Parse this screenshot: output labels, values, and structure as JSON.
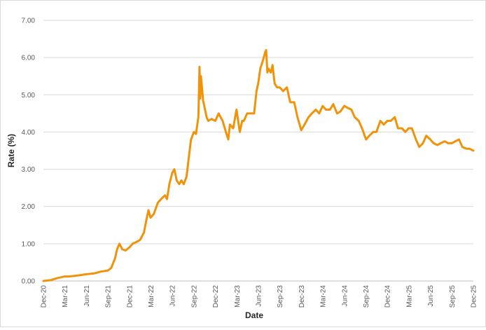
{
  "chart_data": {
    "type": "line",
    "title": "",
    "xlabel": "Date",
    "ylabel": "Rate (%)",
    "ylim": [
      0,
      7
    ],
    "y_ticks": [
      "0.00",
      "1.00",
      "2.00",
      "3.00",
      "4.00",
      "5.00",
      "6.00",
      "7.00"
    ],
    "x_ticks": [
      "Dec-20",
      "Mar-21",
      "Jun-21",
      "Sep-21",
      "Dec-21",
      "Mar-22",
      "Jun-22",
      "Sep-22",
      "Dec-22",
      "Mar-23",
      "Jun-23",
      "Sep-23",
      "Dec-23",
      "Mar-24",
      "Jun-24",
      "Sep-24",
      "Dec-24",
      "Mar-25",
      "Jun-25",
      "Sep-25",
      "Dec-25"
    ],
    "grid": true,
    "line_color": "#f0930a",
    "series": [
      {
        "x": [
          "2020-12-01",
          "2021-01-01",
          "2021-01-15",
          "2021-02-01",
          "2021-02-15",
          "2021-03-01",
          "2021-03-15",
          "2021-04-01",
          "2021-05-01",
          "2021-06-01",
          "2021-07-01",
          "2021-07-15",
          "2021-08-01",
          "2021-09-01",
          "2021-09-15",
          "2021-10-01",
          "2021-10-10",
          "2021-10-20",
          "2021-11-01",
          "2021-11-15",
          "2021-12-01",
          "2021-12-15",
          "2022-01-01",
          "2022-01-15",
          "2022-02-01",
          "2022-02-10",
          "2022-02-20",
          "2022-03-01",
          "2022-03-15",
          "2022-04-01",
          "2022-04-15",
          "2022-05-01",
          "2022-05-10",
          "2022-05-20",
          "2022-06-01",
          "2022-06-10",
          "2022-06-20",
          "2022-07-01",
          "2022-07-10",
          "2022-07-20",
          "2022-08-01",
          "2022-08-10",
          "2022-08-20",
          "2022-09-01",
          "2022-09-10",
          "2022-09-20",
          "2022-09-25",
          "2022-09-28",
          "2022-10-01",
          "2022-10-10",
          "2022-10-15",
          "2022-10-25",
          "2022-11-01",
          "2022-11-15",
          "2022-12-01",
          "2022-12-15",
          "2023-01-01",
          "2023-01-15",
          "2023-01-25",
          "2023-02-01",
          "2023-02-15",
          "2023-03-01",
          "2023-03-08",
          "2023-03-15",
          "2023-03-25",
          "2023-04-01",
          "2023-04-15",
          "2023-05-01",
          "2023-05-15",
          "2023-05-25",
          "2023-06-01",
          "2023-06-10",
          "2023-06-20",
          "2023-07-01",
          "2023-07-05",
          "2023-07-10",
          "2023-07-15",
          "2023-07-25",
          "2023-08-01",
          "2023-08-10",
          "2023-08-20",
          "2023-09-01",
          "2023-09-15",
          "2023-10-01",
          "2023-10-15",
          "2023-11-01",
          "2023-11-15",
          "2023-12-01",
          "2023-12-15",
          "2024-01-01",
          "2024-01-15",
          "2024-02-01",
          "2024-02-15",
          "2024-03-01",
          "2024-03-15",
          "2024-04-01",
          "2024-04-15",
          "2024-05-01",
          "2024-05-15",
          "2024-06-01",
          "2024-06-15",
          "2024-07-01",
          "2024-07-15",
          "2024-08-01",
          "2024-08-15",
          "2024-09-01",
          "2024-09-15",
          "2024-10-01",
          "2024-10-15",
          "2024-11-01",
          "2024-11-15",
          "2024-12-01",
          "2024-12-15",
          "2025-01-01",
          "2025-01-15",
          "2025-02-01",
          "2025-02-15",
          "2025-03-01",
          "2025-03-15",
          "2025-04-01",
          "2025-04-15",
          "2025-05-01",
          "2025-05-15",
          "2025-06-01",
          "2025-06-15",
          "2025-07-01",
          "2025-07-15",
          "2025-08-01",
          "2025-08-15",
          "2025-09-01",
          "2025-09-15",
          "2025-10-01",
          "2025-10-15",
          "2025-11-01",
          "2025-11-15",
          "2025-12-01"
        ],
        "values": [
          0.0,
          0.02,
          0.05,
          0.08,
          0.1,
          0.12,
          0.12,
          0.13,
          0.15,
          0.18,
          0.2,
          0.22,
          0.25,
          0.28,
          0.35,
          0.6,
          0.85,
          1.0,
          0.85,
          0.82,
          0.9,
          1.0,
          1.05,
          1.1,
          1.3,
          1.6,
          1.9,
          1.7,
          1.8,
          2.1,
          2.2,
          2.3,
          2.2,
          2.6,
          2.9,
          3.0,
          2.7,
          2.6,
          2.7,
          2.6,
          2.8,
          3.3,
          3.8,
          4.0,
          3.95,
          4.4,
          5.75,
          4.9,
          5.5,
          4.85,
          4.7,
          4.4,
          4.3,
          4.35,
          4.3,
          4.5,
          4.3,
          4.0,
          3.8,
          4.2,
          4.1,
          4.6,
          4.3,
          4.0,
          4.3,
          4.3,
          4.5,
          4.5,
          4.5,
          5.1,
          5.3,
          5.7,
          5.9,
          6.15,
          6.2,
          5.6,
          5.7,
          5.6,
          5.8,
          5.3,
          5.2,
          5.2,
          5.1,
          5.2,
          4.8,
          4.8,
          4.4,
          4.05,
          4.2,
          4.4,
          4.5,
          4.6,
          4.5,
          4.7,
          4.6,
          4.6,
          4.75,
          4.5,
          4.55,
          4.7,
          4.65,
          4.6,
          4.4,
          4.3,
          4.1,
          3.8,
          3.9,
          4.0,
          4.0,
          4.3,
          4.2,
          4.3,
          4.3,
          4.4,
          4.1,
          4.1,
          4.0,
          4.1,
          4.1,
          3.8,
          3.6,
          3.7,
          3.9,
          3.8,
          3.7,
          3.65,
          3.7,
          3.75,
          3.7,
          3.7,
          3.75,
          3.8,
          3.6,
          3.55,
          3.55,
          3.5
        ]
      }
    ]
  }
}
